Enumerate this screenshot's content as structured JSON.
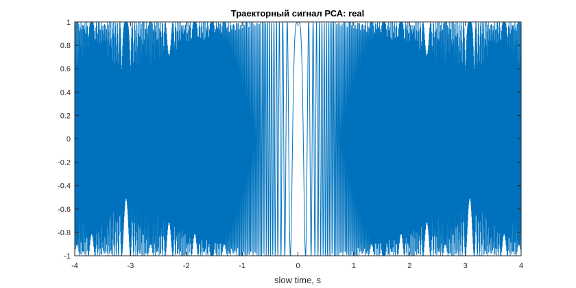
{
  "chart_data": {
    "type": "line",
    "title": "Траекторный сигнал РСА: real",
    "xlabel": "slow time, s",
    "ylabel": "",
    "xlim": [
      -4,
      4
    ],
    "ylim": [
      -1,
      1
    ],
    "xticks": [
      -4,
      -3,
      -2,
      -1,
      0,
      1,
      2,
      3,
      4
    ],
    "yticks": [
      -1,
      -0.8,
      -0.6,
      -0.4,
      -0.2,
      0,
      0.2,
      0.4,
      0.6,
      0.8,
      1
    ],
    "grid": false,
    "legend": "none",
    "series": [
      {
        "name": "",
        "color": "#0072BD",
        "description_of_shape": "rapidly oscillating cosine of a quadratic phase (chirp), amplitude 1, frequency lowest near x=0 and highest near x=±4, with aliasing beats visible near x=±0.75, ±1.7, ±3.5"
      }
    ]
  }
}
